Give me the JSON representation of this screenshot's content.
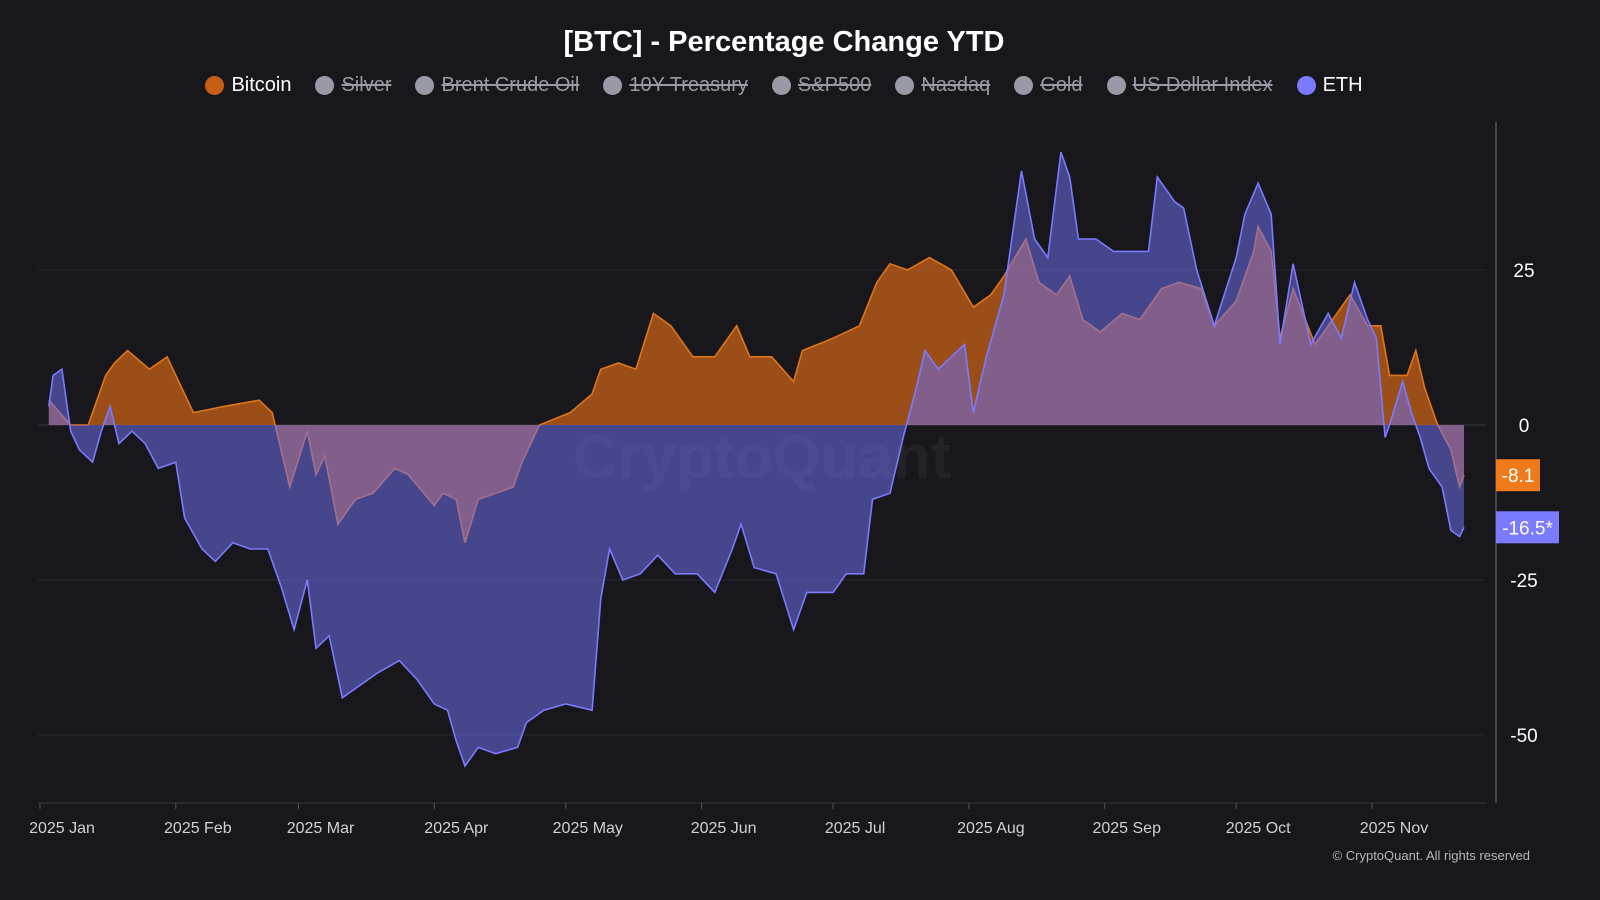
{
  "chart_data": {
    "type": "area",
    "title": "[BTC] - Percentage Change YTD",
    "legend": [
      {
        "name": "Bitcoin",
        "color": "#c65f14",
        "visible": true
      },
      {
        "name": "Silver",
        "color": "#9a9aa6",
        "visible": false
      },
      {
        "name": "Brent Crude Oil",
        "color": "#9a9aa6",
        "visible": false
      },
      {
        "name": "10Y Treasury",
        "color": "#9a9aa6",
        "visible": false
      },
      {
        "name": "S&P500",
        "color": "#9a9aa6",
        "visible": false
      },
      {
        "name": "Nasdaq",
        "color": "#9a9aa6",
        "visible": false
      },
      {
        "name": "Gold",
        "color": "#9a9aa6",
        "visible": false
      },
      {
        "name": "US Dollar Index",
        "color": "#9a9aa6",
        "visible": false
      },
      {
        "name": "ETH",
        "color": "#7b7bff",
        "visible": true
      }
    ],
    "legend_position": "top",
    "x_ticks": [
      "2025 Jan",
      "2025 Feb",
      "2025 Mar",
      "2025 Apr",
      "2025 May",
      "2025 Jun",
      "2025 Jul",
      "2025 Aug",
      "2025 Sep",
      "2025 Oct",
      "2025 Nov"
    ],
    "y_ticks": [
      25,
      0,
      -25,
      -50
    ],
    "ylim": [
      -61,
      49
    ],
    "xlim": [
      "2025-01-01",
      "2025-11-25"
    ],
    "y_axis_side": "right",
    "grid": "horizontal",
    "series": [
      {
        "name": "Bitcoin",
        "color": "#e0761c",
        "last_label": "-8.1",
        "points": [
          [
            "2025-01-03",
            4
          ],
          [
            "2025-01-08",
            0
          ],
          [
            "2025-01-12",
            0
          ],
          [
            "2025-01-16",
            8
          ],
          [
            "2025-01-18",
            10
          ],
          [
            "2025-01-21",
            12
          ],
          [
            "2025-01-26",
            9
          ],
          [
            "2025-01-30",
            11
          ],
          [
            "2025-02-03",
            5
          ],
          [
            "2025-02-05",
            2
          ],
          [
            "2025-02-12",
            3
          ],
          [
            "2025-02-20",
            4
          ],
          [
            "2025-02-23",
            2
          ],
          [
            "2025-02-27",
            -10
          ],
          [
            "2025-03-03",
            -1
          ],
          [
            "2025-03-05",
            -8
          ],
          [
            "2025-03-07",
            -5
          ],
          [
            "2025-03-10",
            -16
          ],
          [
            "2025-03-14",
            -12
          ],
          [
            "2025-03-18",
            -11
          ],
          [
            "2025-03-23",
            -7
          ],
          [
            "2025-03-26",
            -8
          ],
          [
            "2025-04-01",
            -13
          ],
          [
            "2025-04-03",
            -11
          ],
          [
            "2025-04-06",
            -12
          ],
          [
            "2025-04-08",
            -19
          ],
          [
            "2025-04-11",
            -12
          ],
          [
            "2025-04-15",
            -11
          ],
          [
            "2025-04-19",
            -10
          ],
          [
            "2025-04-21",
            -6
          ],
          [
            "2025-04-25",
            0
          ],
          [
            "2025-05-02",
            2
          ],
          [
            "2025-05-07",
            5
          ],
          [
            "2025-05-09",
            9
          ],
          [
            "2025-05-13",
            10
          ],
          [
            "2025-05-17",
            9
          ],
          [
            "2025-05-21",
            18
          ],
          [
            "2025-05-25",
            16
          ],
          [
            "2025-05-30",
            11
          ],
          [
            "2025-06-04",
            11
          ],
          [
            "2025-06-09",
            16
          ],
          [
            "2025-06-12",
            11
          ],
          [
            "2025-06-17",
            11
          ],
          [
            "2025-06-22",
            7
          ],
          [
            "2025-06-24",
            12
          ],
          [
            "2025-07-01",
            14
          ],
          [
            "2025-07-07",
            16
          ],
          [
            "2025-07-11",
            23
          ],
          [
            "2025-07-14",
            26
          ],
          [
            "2025-07-18",
            25
          ],
          [
            "2025-07-23",
            27
          ],
          [
            "2025-07-28",
            25
          ],
          [
            "2025-08-02",
            19
          ],
          [
            "2025-08-06",
            21
          ],
          [
            "2025-08-09",
            24
          ],
          [
            "2025-08-14",
            30
          ],
          [
            "2025-08-17",
            23
          ],
          [
            "2025-08-21",
            21
          ],
          [
            "2025-08-24",
            24
          ],
          [
            "2025-08-27",
            17
          ],
          [
            "2025-08-31",
            15
          ],
          [
            "2025-09-05",
            18
          ],
          [
            "2025-09-09",
            17
          ],
          [
            "2025-09-14",
            22
          ],
          [
            "2025-09-18",
            23
          ],
          [
            "2025-09-23",
            22
          ],
          [
            "2025-09-26",
            16
          ],
          [
            "2025-10-01",
            20
          ],
          [
            "2025-10-05",
            28
          ],
          [
            "2025-10-06",
            32
          ],
          [
            "2025-10-09",
            28
          ],
          [
            "2025-10-11",
            14
          ],
          [
            "2025-10-14",
            22
          ],
          [
            "2025-10-19",
            13
          ],
          [
            "2025-10-24",
            18
          ],
          [
            "2025-10-27",
            21
          ],
          [
            "2025-10-31",
            16
          ],
          [
            "2025-11-03",
            16
          ],
          [
            "2025-11-05",
            8
          ],
          [
            "2025-11-09",
            8
          ],
          [
            "2025-11-11",
            12
          ],
          [
            "2025-11-13",
            6
          ],
          [
            "2025-11-16",
            0
          ],
          [
            "2025-11-19",
            -4
          ],
          [
            "2025-11-21",
            -10
          ],
          [
            "2025-11-22",
            -8.1
          ]
        ]
      },
      {
        "name": "ETH",
        "color": "#7b7bff",
        "last_label": "-16.5*",
        "points": [
          [
            "2025-01-03",
            3
          ],
          [
            "2025-01-04",
            8
          ],
          [
            "2025-01-06",
            9
          ],
          [
            "2025-01-08",
            -1
          ],
          [
            "2025-01-10",
            -4
          ],
          [
            "2025-01-13",
            -6
          ],
          [
            "2025-01-15",
            -1
          ],
          [
            "2025-01-17",
            3
          ],
          [
            "2025-01-19",
            -3
          ],
          [
            "2025-01-22",
            -1
          ],
          [
            "2025-01-25",
            -3
          ],
          [
            "2025-01-28",
            -7
          ],
          [
            "2025-02-01",
            -6
          ],
          [
            "2025-02-03",
            -15
          ],
          [
            "2025-02-07",
            -20
          ],
          [
            "2025-02-10",
            -22
          ],
          [
            "2025-02-14",
            -19
          ],
          [
            "2025-02-18",
            -20
          ],
          [
            "2025-02-22",
            -20
          ],
          [
            "2025-02-25",
            -26
          ],
          [
            "2025-02-28",
            -33
          ],
          [
            "2025-03-03",
            -25
          ],
          [
            "2025-03-05",
            -36
          ],
          [
            "2025-03-08",
            -34
          ],
          [
            "2025-03-11",
            -44
          ],
          [
            "2025-03-15",
            -42
          ],
          [
            "2025-03-19",
            -40
          ],
          [
            "2025-03-24",
            -38
          ],
          [
            "2025-03-28",
            -41
          ],
          [
            "2025-04-01",
            -45
          ],
          [
            "2025-04-04",
            -46
          ],
          [
            "2025-04-06",
            -51
          ],
          [
            "2025-04-08",
            -55
          ],
          [
            "2025-04-11",
            -52
          ],
          [
            "2025-04-15",
            -53
          ],
          [
            "2025-04-20",
            -52
          ],
          [
            "2025-04-22",
            -48
          ],
          [
            "2025-04-26",
            -46
          ],
          [
            "2025-05-01",
            -45
          ],
          [
            "2025-05-07",
            -46
          ],
          [
            "2025-05-09",
            -28
          ],
          [
            "2025-05-11",
            -20
          ],
          [
            "2025-05-14",
            -25
          ],
          [
            "2025-05-18",
            -24
          ],
          [
            "2025-05-22",
            -21
          ],
          [
            "2025-05-26",
            -24
          ],
          [
            "2025-05-31",
            -24
          ],
          [
            "2025-06-04",
            -27
          ],
          [
            "2025-06-08",
            -20
          ],
          [
            "2025-06-10",
            -16
          ],
          [
            "2025-06-13",
            -23
          ],
          [
            "2025-06-18",
            -24
          ],
          [
            "2025-06-22",
            -33
          ],
          [
            "2025-06-25",
            -27
          ],
          [
            "2025-07-01",
            -27
          ],
          [
            "2025-07-04",
            -24
          ],
          [
            "2025-07-08",
            -24
          ],
          [
            "2025-07-10",
            -12
          ],
          [
            "2025-07-14",
            -11
          ],
          [
            "2025-07-17",
            -2
          ],
          [
            "2025-07-20",
            6
          ],
          [
            "2025-07-22",
            12
          ],
          [
            "2025-07-25",
            9
          ],
          [
            "2025-07-28",
            11
          ],
          [
            "2025-07-31",
            13
          ],
          [
            "2025-08-02",
            2
          ],
          [
            "2025-08-05",
            11
          ],
          [
            "2025-08-09",
            21
          ],
          [
            "2025-08-13",
            41
          ],
          [
            "2025-08-16",
            30
          ],
          [
            "2025-08-19",
            27
          ],
          [
            "2025-08-22",
            44
          ],
          [
            "2025-08-24",
            40
          ],
          [
            "2025-08-26",
            30
          ],
          [
            "2025-08-30",
            30
          ],
          [
            "2025-09-03",
            28
          ],
          [
            "2025-09-07",
            28
          ],
          [
            "2025-09-11",
            28
          ],
          [
            "2025-09-13",
            40
          ],
          [
            "2025-09-17",
            36
          ],
          [
            "2025-09-19",
            35
          ],
          [
            "2025-09-22",
            25
          ],
          [
            "2025-09-26",
            16
          ],
          [
            "2025-10-01",
            27
          ],
          [
            "2025-10-03",
            34
          ],
          [
            "2025-10-06",
            39
          ],
          [
            "2025-10-09",
            34
          ],
          [
            "2025-10-11",
            13
          ],
          [
            "2025-10-14",
            26
          ],
          [
            "2025-10-18",
            13
          ],
          [
            "2025-10-22",
            18
          ],
          [
            "2025-10-25",
            14
          ],
          [
            "2025-10-28",
            23
          ],
          [
            "2025-10-31",
            17
          ],
          [
            "2025-11-02",
            14
          ],
          [
            "2025-11-04",
            -2
          ],
          [
            "2025-11-05",
            0
          ],
          [
            "2025-11-08",
            7
          ],
          [
            "2025-11-10",
            2
          ],
          [
            "2025-11-12",
            -2
          ],
          [
            "2025-11-14",
            -7
          ],
          [
            "2025-11-17",
            -10
          ],
          [
            "2025-11-19",
            -17
          ],
          [
            "2025-11-21",
            -18
          ],
          [
            "2025-11-22",
            -16.5
          ]
        ]
      }
    ],
    "watermark": "CryptoQuant"
  },
  "footer": {
    "credit": "© CryptoQuant. All rights reserved"
  }
}
